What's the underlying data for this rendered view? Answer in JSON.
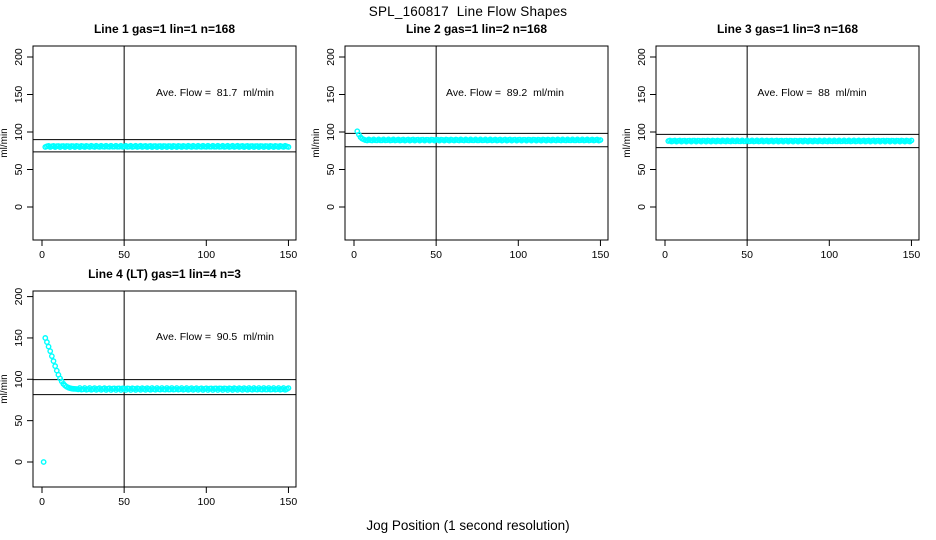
{
  "figure": {
    "title": "SPL_160817  Line Flow Shapes",
    "xlabel": "Jog Position (1 second resolution)"
  },
  "colors": {
    "points": "#00FFFF",
    "axis": "#000000",
    "background": "#FFFFFF"
  },
  "chart_data": [
    {
      "type": "scatter",
      "title": "Line 1 gas=1 lin=1 n=168",
      "annotation": "Ave. Flow =  81.7  ml/min",
      "ave_flow_ml_min": 81.7,
      "n": 168,
      "ylabel": "ml/min",
      "x_ticks": [
        0,
        50,
        100,
        150
      ],
      "y_ticks": [
        0,
        50,
        100,
        150,
        200
      ],
      "x_range": [
        0,
        150
      ],
      "y_range": [
        0,
        200
      ],
      "ref_vline_x": 50,
      "ref_hlines": [
        89.9,
        73.5
      ],
      "series": {
        "outliers": [],
        "transient": [],
        "plateau": {
          "x_from": 2,
          "x_to": 150,
          "y": 80.8,
          "jitter": 0.9
        }
      }
    },
    {
      "type": "scatter",
      "title": "Line 2 gas=1 lin=2 n=168",
      "annotation": "Ave. Flow =  89.2  ml/min",
      "ave_flow_ml_min": 89.2,
      "n": 168,
      "ylabel": "ml/min",
      "x_ticks": [
        0,
        50,
        100,
        150
      ],
      "y_ticks": [
        0,
        50,
        100,
        150,
        200
      ],
      "x_range": [
        0,
        150
      ],
      "y_range": [
        0,
        200
      ],
      "ref_vline_x": 50,
      "ref_hlines": [
        98.1,
        80.3
      ],
      "series": {
        "outliers": [],
        "transient": [
          [
            2,
            101
          ],
          [
            3,
            96.5
          ],
          [
            4,
            93
          ],
          [
            5,
            91
          ],
          [
            6,
            90
          ]
        ],
        "plateau": {
          "x_from": 7,
          "x_to": 150,
          "y": 89.3,
          "jitter": 0.8
        }
      }
    },
    {
      "type": "scatter",
      "title": "Line 3 gas=1 lin=3 n=168",
      "annotation": "Ave. Flow =  88  ml/min",
      "ave_flow_ml_min": 88,
      "n": 168,
      "ylabel": "ml/min",
      "x_ticks": [
        0,
        50,
        100,
        150
      ],
      "y_ticks": [
        0,
        50,
        100,
        150,
        200
      ],
      "x_range": [
        0,
        150
      ],
      "y_range": [
        0,
        200
      ],
      "ref_vline_x": 50,
      "ref_hlines": [
        96.8,
        79.2
      ],
      "series": {
        "outliers": [],
        "transient": [],
        "plateau": {
          "x_from": 2,
          "x_to": 150,
          "y": 88,
          "jitter": 0.8
        }
      }
    },
    {
      "type": "scatter",
      "title": "Line 4 (LT) gas=1 lin=4 n=3",
      "annotation": "Ave. Flow =  90.5  ml/min",
      "ave_flow_ml_min": 90.5,
      "n": 3,
      "ylabel": "ml/min",
      "x_ticks": [
        0,
        50,
        100,
        150
      ],
      "y_ticks": [
        0,
        50,
        100,
        150,
        200
      ],
      "x_range": [
        0,
        150
      ],
      "y_range": [
        0,
        200
      ],
      "ref_vline_x": 50,
      "ref_hlines": [
        99.6,
        81.5
      ],
      "series": {
        "outliers": [
          [
            1,
            0
          ]
        ],
        "transient": [
          [
            2,
            150
          ],
          [
            3,
            145
          ],
          [
            4,
            139.5
          ],
          [
            5,
            134
          ],
          [
            6,
            128
          ],
          [
            7,
            122
          ],
          [
            8,
            116
          ],
          [
            9,
            110.5
          ],
          [
            10,
            105.5
          ],
          [
            11,
            101
          ],
          [
            12,
            97.5
          ],
          [
            13,
            94.5
          ],
          [
            14,
            92.5
          ],
          [
            15,
            91
          ],
          [
            16,
            90
          ],
          [
            17,
            89.3
          ],
          [
            18,
            88.8
          ],
          [
            19,
            88.5
          ],
          [
            20,
            88.4
          ],
          [
            21,
            88.3
          ]
        ],
        "plateau": {
          "x_from": 22,
          "x_to": 150,
          "y": 88.3,
          "jitter": 1.2
        }
      }
    }
  ]
}
